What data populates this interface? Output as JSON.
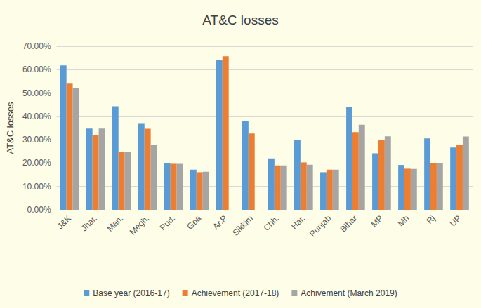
{
  "chart_data": {
    "type": "bar",
    "title": "AT&C losses",
    "y_label": "AT&C losses",
    "categories": [
      "J&K",
      "Jhar.",
      "Man.",
      "Megh.",
      "Pud.",
      "Goa",
      "Ar.P",
      "Sikkim",
      "Chh.",
      "Har.",
      "Punjab",
      "Bihar",
      "MP",
      "Mh",
      "Rj",
      "UP"
    ],
    "series": [
      {
        "name": "Base year (2016-17)",
        "color": "#5b9bd5",
        "values": [
          61.8,
          34.8,
          44.3,
          36.8,
          19.9,
          17.2,
          64.3,
          38.0,
          22.0,
          30.0,
          16.1,
          44.0,
          24.2,
          19.2,
          30.6,
          26.7
        ]
      },
      {
        "name": "Achievement (2017-18)",
        "color": "#ed7d31",
        "values": [
          54.0,
          32.0,
          24.7,
          34.7,
          19.7,
          16.1,
          65.7,
          32.7,
          19.0,
          20.3,
          17.2,
          33.3,
          29.8,
          17.6,
          20.0,
          27.8
        ]
      },
      {
        "name": "Achivement (March 2019)",
        "color": "#a5a5a5",
        "values": [
          52.3,
          34.8,
          24.7,
          27.8,
          19.7,
          16.3,
          null,
          null,
          19.0,
          19.3,
          17.2,
          36.4,
          31.5,
          17.5,
          20.0,
          31.4
        ]
      }
    ],
    "ylim": [
      0,
      70
    ],
    "yticks": [
      {
        "value": 0,
        "label": "0.00%"
      },
      {
        "value": 10,
        "label": "10.00%"
      },
      {
        "value": 20,
        "label": "20.00%"
      },
      {
        "value": 30,
        "label": "30.00%"
      },
      {
        "value": 40,
        "label": "40.00%"
      },
      {
        "value": 50,
        "label": "50.00%"
      },
      {
        "value": 60,
        "label": "60.00%"
      },
      {
        "value": 70,
        "label": "70.00%"
      }
    ],
    "grid": true,
    "legend": "bottom"
  }
}
